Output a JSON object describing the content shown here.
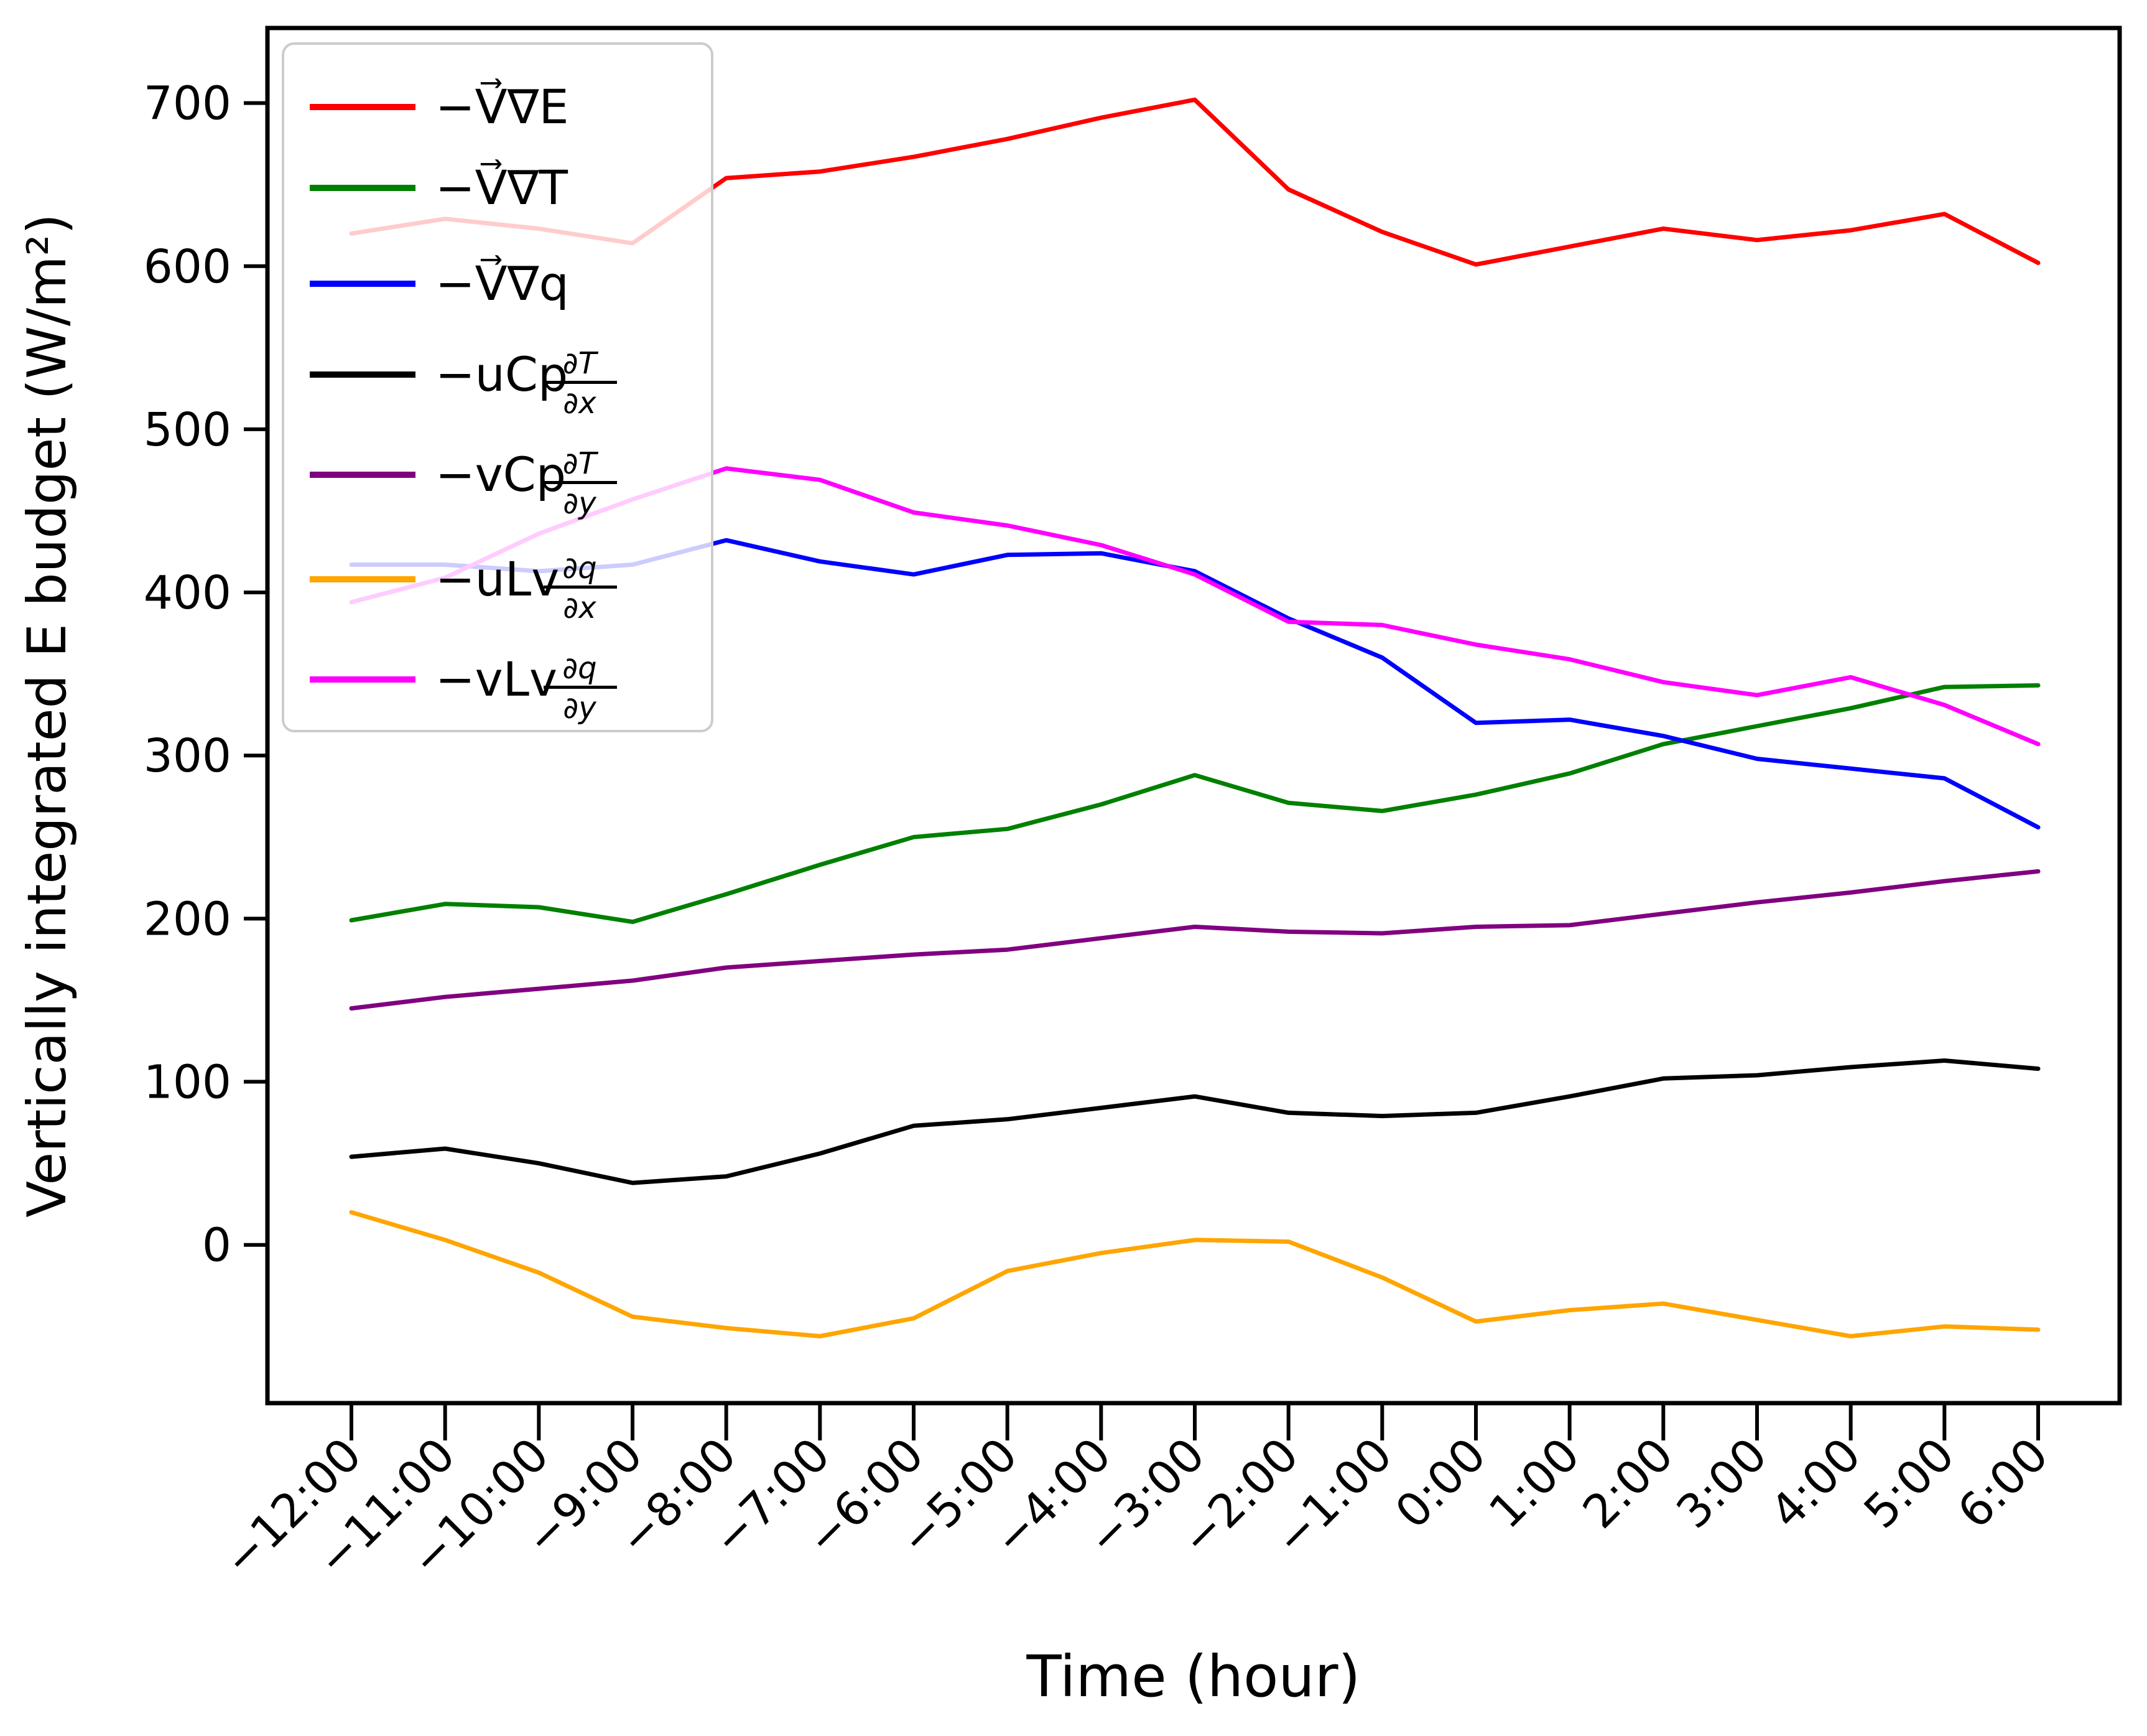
{
  "figure": {
    "background": "#ffffff"
  },
  "chart_data": {
    "type": "line",
    "title": "",
    "xlabel": "Time (hour)",
    "ylabel": "Vertically integrated E budget (W/m²)",
    "grid": false,
    "legend_position": "upper left",
    "x_values": [
      -12,
      -11,
      -10,
      -9,
      -8,
      -7,
      -6,
      -5,
      -4,
      -3,
      -2,
      -1,
      0,
      1,
      2,
      3,
      4,
      5,
      6
    ],
    "x_tick_labels": [
      "−12:00",
      "−11:00",
      "−10:00",
      "−9:00",
      "−8:00",
      "−7:00",
      "−6:00",
      "−5:00",
      "−4:00",
      "−3:00",
      "−2:00",
      "−1:00",
      "0:00",
      "1:00",
      "2:00",
      "3:00",
      "4:00",
      "5:00",
      "6:00"
    ],
    "yticks": [
      0,
      100,
      200,
      300,
      400,
      500,
      600,
      700
    ],
    "ytick_labels": [
      "0",
      "100",
      "200",
      "300",
      "400",
      "500",
      "600",
      "700"
    ],
    "ylim": [
      -97,
      746
    ],
    "series": [
      {
        "name": "−V⃗∇E",
        "color": "#ff0000",
        "legend_pre": "−V⃗∇E",
        "legend_num": "",
        "legend_den": "",
        "values": [
          620,
          629,
          623,
          614,
          654,
          658,
          667,
          678,
          691,
          702,
          647,
          621,
          601,
          612,
          623,
          616,
          622,
          632,
          602
        ]
      },
      {
        "name": "−V⃗∇T",
        "color": "#008000",
        "legend_pre": "−V⃗∇T",
        "legend_num": "",
        "legend_den": "",
        "values": [
          199,
          209,
          207,
          198,
          215,
          233,
          250,
          255,
          270,
          288,
          271,
          266,
          276,
          289,
          307,
          318,
          329,
          342,
          343
        ]
      },
      {
        "name": "−V⃗∇q",
        "color": "#0000ff",
        "legend_pre": "−V⃗∇q",
        "legend_num": "",
        "legend_den": "",
        "values": [
          417,
          417,
          413,
          417,
          432,
          419,
          411,
          423,
          424,
          413,
          384,
          360,
          320,
          322,
          312,
          298,
          292,
          286,
          256
        ]
      },
      {
        "name": "−uCp∂T/∂x",
        "color": "#000000",
        "legend_pre": "−uCp",
        "legend_num": "∂T",
        "legend_den": "∂x",
        "values": [
          54,
          59,
          50,
          38,
          42,
          56,
          73,
          77,
          84,
          91,
          81,
          79,
          81,
          91,
          102,
          104,
          109,
          113,
          108
        ]
      },
      {
        "name": "−vCp∂T/∂y",
        "color": "#800080",
        "legend_pre": "−vCp",
        "legend_num": "∂T",
        "legend_den": "∂y",
        "values": [
          145,
          152,
          157,
          162,
          170,
          174,
          178,
          181,
          188,
          195,
          192,
          191,
          195,
          196,
          203,
          210,
          216,
          223,
          229
        ]
      },
      {
        "name": "−uLv∂q/∂x",
        "color": "#ffa500",
        "legend_pre": "−uLv",
        "legend_num": "∂q",
        "legend_den": "∂x",
        "values": [
          20,
          3,
          -17,
          -44,
          -51,
          -56,
          -45,
          -16,
          -5,
          3,
          2,
          -20,
          -47,
          -40,
          -36,
          -46,
          -56,
          -50,
          -52
        ]
      },
      {
        "name": "−vLv∂q/∂y",
        "color": "#ff00ff",
        "legend_pre": "−vLv",
        "legend_num": "∂q",
        "legend_den": "∂y",
        "values": [
          394,
          409,
          436,
          457,
          476,
          469,
          449,
          441,
          429,
          411,
          382,
          380,
          368,
          359,
          345,
          337,
          348,
          331,
          307
        ]
      }
    ]
  }
}
